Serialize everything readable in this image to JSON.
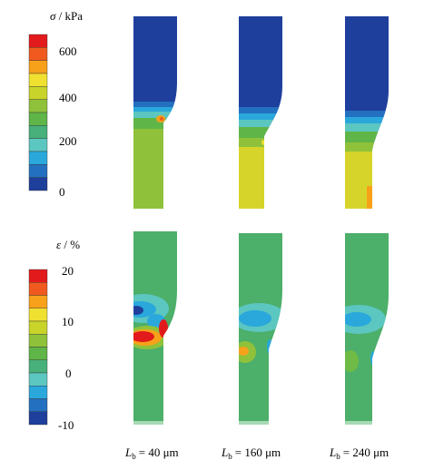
{
  "stress_legend": {
    "symbol": "σ",
    "unit": "/ kPa",
    "ticks": [
      "600",
      "400",
      "200",
      "0"
    ]
  },
  "strain_legend": {
    "symbol": "ε",
    "unit": "/ %",
    "ticks": [
      "20",
      "10",
      "0",
      "-10"
    ]
  },
  "captions": [
    {
      "symbol": "L",
      "subscript": "b",
      "text": "= 40 μm"
    },
    {
      "symbol": "L",
      "subscript": "b",
      "text": "= 160 μm"
    },
    {
      "symbol": "L",
      "subscript": "b",
      "text": "= 240 μm"
    }
  ]
}
